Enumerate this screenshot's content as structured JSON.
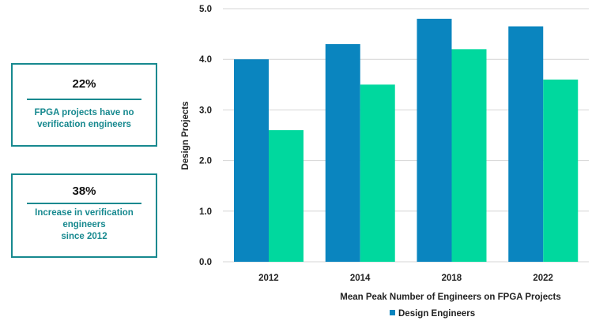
{
  "stats": [
    {
      "value": "22%",
      "text_lines": [
        "FPGA projects have no",
        "verification engineers"
      ]
    },
    {
      "value": "38%",
      "text_lines": [
        "Increase in verification",
        "engineers",
        "since 2012"
      ]
    }
  ],
  "chart_data": {
    "type": "bar",
    "categories": [
      "2012",
      "2014",
      "2018",
      "2022"
    ],
    "series": [
      {
        "name": "Design Engineers",
        "color": "#0a85bf",
        "values": [
          4.0,
          4.3,
          4.8,
          4.65
        ]
      },
      {
        "color": "#00d89e",
        "values": [
          2.6,
          3.5,
          4.2,
          3.6
        ]
      }
    ],
    "ylabel": "Design Projects",
    "xlabel": "Mean Peak Number of Engineers on FPGA Projects",
    "ylim": [
      0,
      5
    ],
    "yticks": [
      "0.0",
      "1.0",
      "2.0",
      "3.0",
      "4.0",
      "5.0"
    ],
    "grid": true,
    "legend_position": "bottom"
  }
}
